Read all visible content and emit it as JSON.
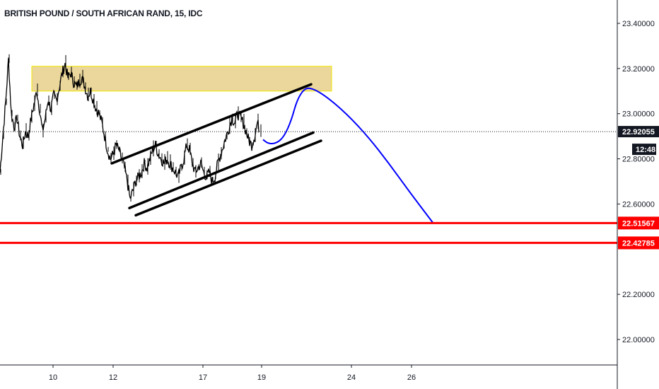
{
  "header": {
    "title": "BRITISH POUND / SOUTH AFRICAN RAND, 15, IDC"
  },
  "colors": {
    "candle": "#000000",
    "channel": "#000000",
    "projection": "#0000ff",
    "zone_fill": "#e8d08a",
    "zone_border": "#f2e600",
    "level": "#ff0000",
    "last_price_bg": "#131722",
    "axis": "#131722"
  },
  "chart_data": {
    "type": "line",
    "x_ticks": [
      "10",
      "12",
      "17",
      "19",
      "24",
      "26"
    ],
    "y_ticks": [
      "23.40000",
      "23.20000",
      "23.00000",
      "22.80000",
      "22.60000",
      "22.20000",
      "22.00000"
    ],
    "ylim": [
      21.88,
      23.48
    ],
    "last_price": "22.92055",
    "countdown": "12:48",
    "levels": [
      {
        "value": 22.51567,
        "label": "22.51567"
      },
      {
        "value": 22.42785,
        "label": "22.42785"
      }
    ],
    "supply_zone": {
      "y_low": 23.1,
      "y_high": 23.21
    },
    "price_path": [
      [
        0,
        22.74
      ],
      [
        4,
        22.9
      ],
      [
        8,
        23.05
      ],
      [
        12,
        23.24
      ],
      [
        16,
        23.0
      ],
      [
        20,
        22.94
      ],
      [
        24,
        22.98
      ],
      [
        28,
        22.9
      ],
      [
        32,
        22.86
      ],
      [
        36,
        22.92
      ],
      [
        40,
        22.9
      ],
      [
        44,
        22.98
      ],
      [
        48,
        23.04
      ],
      [
        52,
        23.1
      ],
      [
        56,
        23.02
      ],
      [
        60,
        22.92
      ],
      [
        64,
        22.98
      ],
      [
        68,
        23.06
      ],
      [
        72,
        23.02
      ],
      [
        76,
        23.08
      ],
      [
        80,
        23.06
      ],
      [
        84,
        23.12
      ],
      [
        88,
        23.18
      ],
      [
        92,
        23.22
      ],
      [
        96,
        23.16
      ],
      [
        100,
        23.18
      ],
      [
        104,
        23.14
      ],
      [
        108,
        23.12
      ],
      [
        112,
        23.14
      ],
      [
        116,
        23.16
      ],
      [
        120,
        23.12
      ],
      [
        124,
        23.08
      ],
      [
        128,
        23.1
      ],
      [
        132,
        23.06
      ],
      [
        136,
        23.02
      ],
      [
        140,
        23.0
      ],
      [
        144,
        22.96
      ],
      [
        148,
        22.9
      ],
      [
        152,
        22.84
      ],
      [
        156,
        22.8
      ],
      [
        160,
        22.82
      ],
      [
        164,
        22.86
      ],
      [
        168,
        22.84
      ],
      [
        172,
        22.8
      ],
      [
        176,
        22.76
      ],
      [
        180,
        22.7
      ],
      [
        184,
        22.62
      ],
      [
        188,
        22.66
      ],
      [
        192,
        22.7
      ],
      [
        196,
        22.72
      ],
      [
        200,
        22.74
      ],
      [
        204,
        22.78
      ],
      [
        208,
        22.76
      ],
      [
        212,
        22.8
      ],
      [
        216,
        22.84
      ],
      [
        220,
        22.86
      ],
      [
        224,
        22.82
      ],
      [
        228,
        22.8
      ],
      [
        232,
        22.78
      ],
      [
        236,
        22.8
      ],
      [
        240,
        22.78
      ],
      [
        244,
        22.76
      ],
      [
        248,
        22.74
      ],
      [
        252,
        22.72
      ],
      [
        256,
        22.76
      ],
      [
        260,
        22.8
      ],
      [
        264,
        22.86
      ],
      [
        268,
        22.84
      ],
      [
        272,
        22.78
      ],
      [
        276,
        22.74
      ],
      [
        280,
        22.76
      ],
      [
        284,
        22.78
      ],
      [
        288,
        22.74
      ],
      [
        292,
        22.72
      ],
      [
        296,
        22.74
      ],
      [
        300,
        22.7
      ],
      [
        304,
        22.72
      ],
      [
        308,
        22.78
      ],
      [
        312,
        22.82
      ],
      [
        316,
        22.86
      ],
      [
        320,
        22.9
      ],
      [
        324,
        22.94
      ],
      [
        328,
        22.98
      ],
      [
        332,
        22.96
      ],
      [
        336,
        23.0
      ],
      [
        340,
        22.98
      ],
      [
        344,
        22.96
      ],
      [
        348,
        22.92
      ],
      [
        352,
        22.88
      ],
      [
        356,
        22.86
      ],
      [
        360,
        22.9
      ],
      [
        364,
        22.96
      ],
      [
        368,
        22.92
      ]
    ],
    "channel_lines": [
      [
        [
          158,
          22.78
        ],
        [
          440,
          23.13
        ]
      ],
      [
        [
          183,
          22.582
        ],
        [
          443,
          22.916
        ]
      ],
      [
        [
          192,
          22.55
        ],
        [
          454,
          22.88
        ]
      ]
    ],
    "projection_path": [
      [
        372,
        22.885
      ],
      [
        380,
        22.866
      ],
      [
        392,
        22.87
      ],
      [
        402,
        22.9
      ],
      [
        412,
        22.97
      ],
      [
        420,
        23.06
      ],
      [
        430,
        23.11
      ],
      [
        440,
        23.115
      ],
      [
        460,
        23.08
      ],
      [
        490,
        23.0
      ],
      [
        520,
        22.9
      ],
      [
        550,
        22.78
      ],
      [
        580,
        22.65
      ],
      [
        612,
        22.518
      ]
    ]
  }
}
